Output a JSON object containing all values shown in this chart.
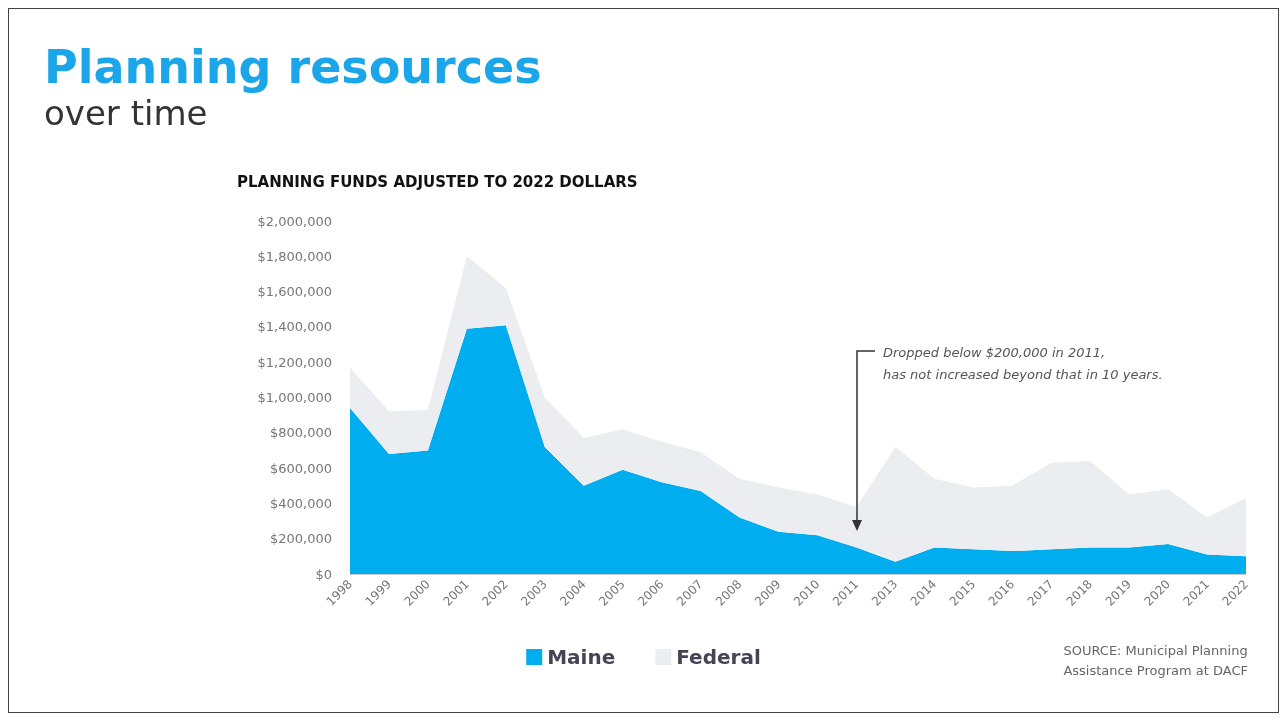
{
  "chart_data": {
    "type": "area",
    "title": "Planning resources",
    "subtitle": "over time",
    "ylabel": "PLANNING FUNDS ADJUSTED TO 2022 DOLLARS",
    "categories": [
      "1998",
      "1999",
      "2000",
      "2001",
      "2002",
      "2003",
      "2004",
      "2005",
      "2006",
      "2007",
      "2008",
      "2009",
      "2010",
      "2011",
      "2013",
      "2014",
      "2015",
      "2016",
      "2017",
      "2018",
      "2019",
      "2020",
      "2021",
      "2022"
    ],
    "stacked": true,
    "series": [
      {
        "name": "Maine",
        "color": "#00aeef",
        "values": [
          940000,
          680000,
          700000,
          1390000,
          1410000,
          720000,
          500000,
          590000,
          520000,
          470000,
          320000,
          240000,
          220000,
          150000,
          70000,
          150000,
          140000,
          130000,
          140000,
          150000,
          150000,
          170000,
          110000,
          100000
        ]
      },
      {
        "name": "Federal",
        "color": "#ebedf0",
        "values": [
          230000,
          240000,
          230000,
          410000,
          210000,
          280000,
          270000,
          230000,
          230000,
          220000,
          220000,
          250000,
          230000,
          230000,
          650000,
          390000,
          350000,
          370000,
          490000,
          490000,
          300000,
          310000,
          210000,
          330000
        ]
      }
    ],
    "ylim": [
      0,
      2000000
    ],
    "yticks": [
      {
        "value": 0,
        "label": "$0"
      },
      {
        "value": 200000,
        "label": "$200,000"
      },
      {
        "value": 400000,
        "label": "$400,000"
      },
      {
        "value": 600000,
        "label": "$600,000"
      },
      {
        "value": 800000,
        "label": "$800,000"
      },
      {
        "value": 1000000,
        "label": "$1,000,000"
      },
      {
        "value": 1200000,
        "label": "$1,200,000"
      },
      {
        "value": 1400000,
        "label": "$1,400,000"
      },
      {
        "value": 1600000,
        "label": "$1,600,000"
      },
      {
        "value": 1800000,
        "label": "$1,800,000"
      },
      {
        "value": 2000000,
        "label": "$2,000,000"
      }
    ],
    "legend": "bottom",
    "annotations": [
      "Dropped below $200,000 in 2011,\nhas not increased beyond that in 10 years.",
      "SOURCE: Municipal Planning\nAssistance Program at DACF"
    ]
  }
}
